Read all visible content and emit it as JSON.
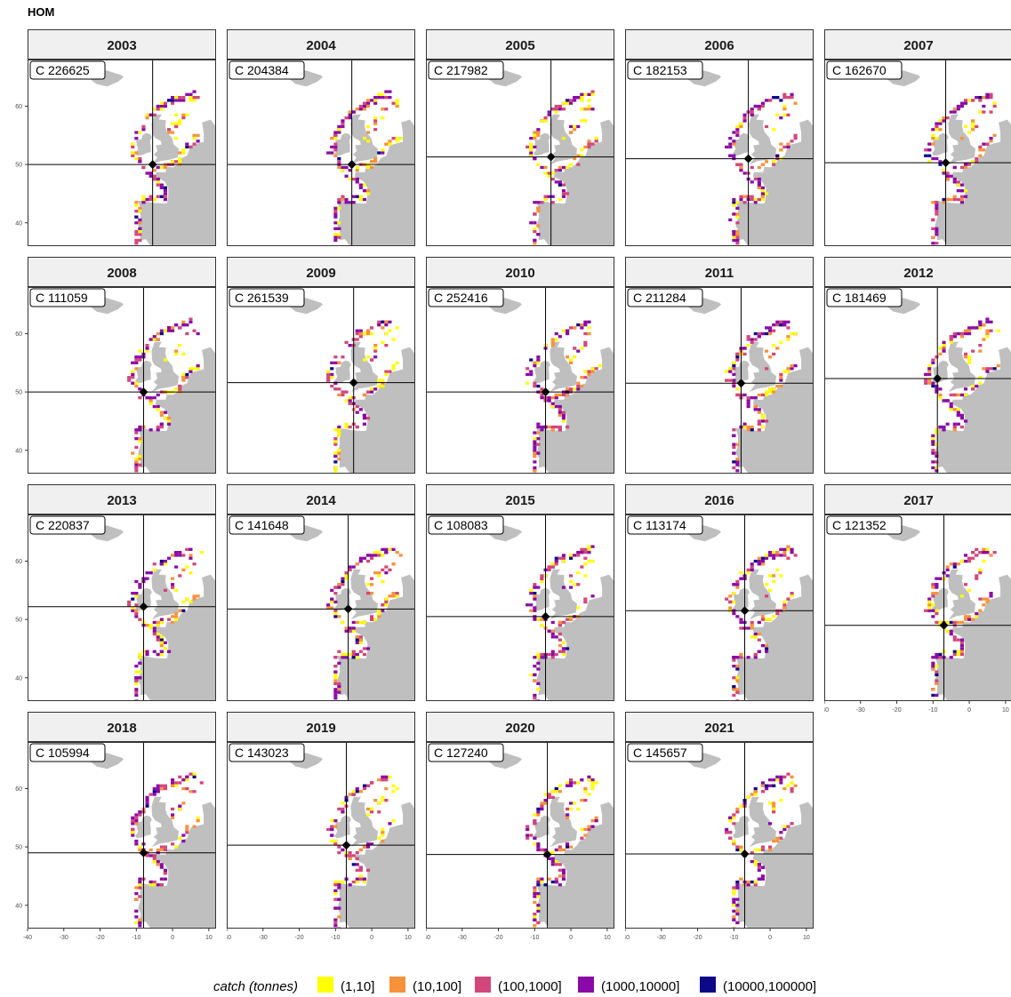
{
  "title": "HOM",
  "colors": {
    "land": "#bfbfbf",
    "strip": "#f0f0f0",
    "crosshair": "#000000",
    "bins": [
      "#ffff00",
      "#f7923a",
      "#d2467c",
      "#8a0aa8",
      "#0d0887"
    ]
  },
  "map_axes": {
    "x_ticks": [
      -40,
      -30,
      -20,
      -10,
      0,
      10
    ],
    "y_ticks": [
      40,
      50,
      60
    ],
    "x_range": [
      -40,
      12
    ],
    "y_range": [
      36,
      68
    ]
  },
  "panels": [
    {
      "year": "2003",
      "catch_label": "C 226625",
      "center": [
        -5.5,
        50.0
      ],
      "seed": 1
    },
    {
      "year": "2004",
      "catch_label": "C 204384",
      "center": [
        -5.5,
        50.0
      ],
      "seed": 2
    },
    {
      "year": "2005",
      "catch_label": "C 217982",
      "center": [
        -5.5,
        51.3
      ],
      "seed": 3
    },
    {
      "year": "2006",
      "catch_label": "C 182153",
      "center": [
        -6.0,
        51.0
      ],
      "seed": 4
    },
    {
      "year": "2007",
      "catch_label": "C 162670",
      "center": [
        -6.5,
        50.3
      ],
      "seed": 5
    },
    {
      "year": "2008",
      "catch_label": "C 111059",
      "center": [
        -8.0,
        50.0
      ],
      "seed": 6
    },
    {
      "year": "2009",
      "catch_label": "C 261539",
      "center": [
        -5.0,
        51.6
      ],
      "seed": 7
    },
    {
      "year": "2010",
      "catch_label": "C 252416",
      "center": [
        -7.0,
        50.0
      ],
      "seed": 8
    },
    {
      "year": "2011",
      "catch_label": "C 211284",
      "center": [
        -8.0,
        51.5
      ],
      "seed": 9
    },
    {
      "year": "2012",
      "catch_label": "C 181469",
      "center": [
        -8.8,
        52.3
      ],
      "seed": 10
    },
    {
      "year": "2013",
      "catch_label": "C 220837",
      "center": [
        -8.0,
        52.2
      ],
      "seed": 11
    },
    {
      "year": "2014",
      "catch_label": "C 141648",
      "center": [
        -6.5,
        51.8
      ],
      "seed": 12
    },
    {
      "year": "2015",
      "catch_label": "C 108083",
      "center": [
        -7.0,
        50.5
      ],
      "seed": 13
    },
    {
      "year": "2016",
      "catch_label": "C 113174",
      "center": [
        -7.0,
        51.5
      ],
      "seed": 14
    },
    {
      "year": "2017",
      "catch_label": "C 121352",
      "center": [
        -7.0,
        49.0
      ],
      "seed": 15
    },
    {
      "year": "2018",
      "catch_label": "C 105994",
      "center": [
        -8.0,
        49.0
      ],
      "seed": 16
    },
    {
      "year": "2019",
      "catch_label": "C 143023",
      "center": [
        -7.0,
        50.3
      ],
      "seed": 17
    },
    {
      "year": "2020",
      "catch_label": "C 127240",
      "center": [
        -6.5,
        48.7
      ],
      "seed": 18
    },
    {
      "year": "2021",
      "catch_label": "C 145657",
      "center": [
        -7.0,
        48.8
      ],
      "seed": 19
    }
  ],
  "legend": {
    "title": "catch (tonnes)",
    "labels": [
      "(1,10]",
      "(10,100]",
      "(100,1000]",
      "(1000,10000]",
      "(10000,100000]"
    ]
  }
}
